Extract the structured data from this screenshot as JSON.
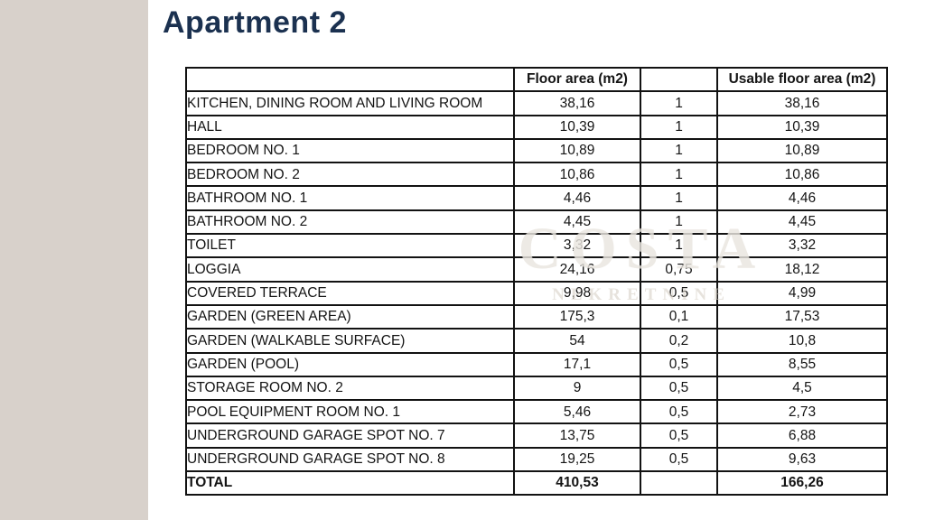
{
  "page": {
    "title": "Apartment 2",
    "title_color": "#1b3150",
    "side_strip_color": "#d8d1cb"
  },
  "watermark": {
    "line1": "COSTA",
    "line2": "NEKRETNINE"
  },
  "table": {
    "headers": [
      "",
      "Floor area (m2)",
      "",
      "Usable floor area (m2)"
    ],
    "rows": [
      {
        "name": "KITCHEN, DINING ROOM AND LIVING ROOM",
        "floor_area": "38,16",
        "coefficient": "1",
        "usable_area": "38,16"
      },
      {
        "name": "HALL",
        "floor_area": "10,39",
        "coefficient": "1",
        "usable_area": "10,39"
      },
      {
        "name": "BEDROOM NO. 1",
        "floor_area": "10,89",
        "coefficient": "1",
        "usable_area": "10,89"
      },
      {
        "name": "BEDROOM NO. 2",
        "floor_area": "10,86",
        "coefficient": "1",
        "usable_area": "10,86"
      },
      {
        "name": "BATHROOM NO. 1",
        "floor_area": "4,46",
        "coefficient": "1",
        "usable_area": "4,46"
      },
      {
        "name": "BATHROOM NO. 2",
        "floor_area": "4,45",
        "coefficient": "1",
        "usable_area": "4,45"
      },
      {
        "name": "TOILET",
        "floor_area": "3,32",
        "coefficient": "1",
        "usable_area": "3,32"
      },
      {
        "name": "LOGGIA",
        "floor_area": "24,16",
        "coefficient": "0,75",
        "usable_area": "18,12"
      },
      {
        "name": "COVERED TERRACE",
        "floor_area": "9,98",
        "coefficient": "0,5",
        "usable_area": "4,99"
      },
      {
        "name": "GARDEN (GREEN AREA)",
        "floor_area": "175,3",
        "coefficient": "0,1",
        "usable_area": "17,53"
      },
      {
        "name": "GARDEN (WALKABLE SURFACE)",
        "floor_area": "54",
        "coefficient": "0,2",
        "usable_area": "10,8"
      },
      {
        "name": "GARDEN (POOL)",
        "floor_area": "17,1",
        "coefficient": "0,5",
        "usable_area": "8,55"
      },
      {
        "name": "STORAGE ROOM NO. 2",
        "floor_area": "9",
        "coefficient": "0,5",
        "usable_area": "4,5"
      },
      {
        "name": "POOL EQUIPMENT ROOM NO. 1",
        "floor_area": "5,46",
        "coefficient": "0,5",
        "usable_area": "2,73"
      },
      {
        "name": "UNDERGROUND GARAGE SPOT NO. 7",
        "floor_area": "13,75",
        "coefficient": "0,5",
        "usable_area": "6,88"
      },
      {
        "name": "UNDERGROUND GARAGE SPOT NO. 8",
        "floor_area": "19,25",
        "coefficient": "0,5",
        "usable_area": "9,63"
      }
    ],
    "total": {
      "label": "TOTAL",
      "floor_area": "410,53",
      "coefficient": "",
      "usable_area": "166,26"
    }
  }
}
